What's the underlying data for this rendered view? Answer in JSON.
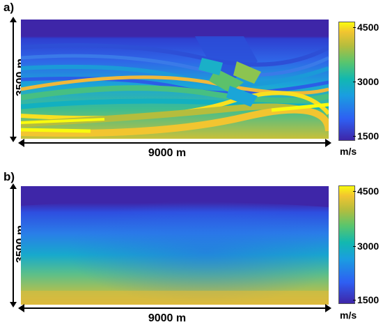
{
  "panel_a": {
    "label": "a)",
    "depth_label": "3500 m",
    "width_label": "9000 m",
    "colorbar": {
      "ticks": [
        "4500",
        "3000",
        "1500"
      ],
      "unit": "m/s"
    }
  },
  "panel_b": {
    "label": "b)",
    "depth_label": "3500 m",
    "width_label": "9000 m",
    "colorbar": {
      "ticks": [
        "4500",
        "3000",
        "1500"
      ],
      "unit": "m/s"
    }
  },
  "colors": {
    "water": "#3e26a8",
    "low": "#2f5bd8",
    "mid": "#12b2c0",
    "green": "#57c06e",
    "high": "#f2c530",
    "max": "#f9fb0e"
  }
}
